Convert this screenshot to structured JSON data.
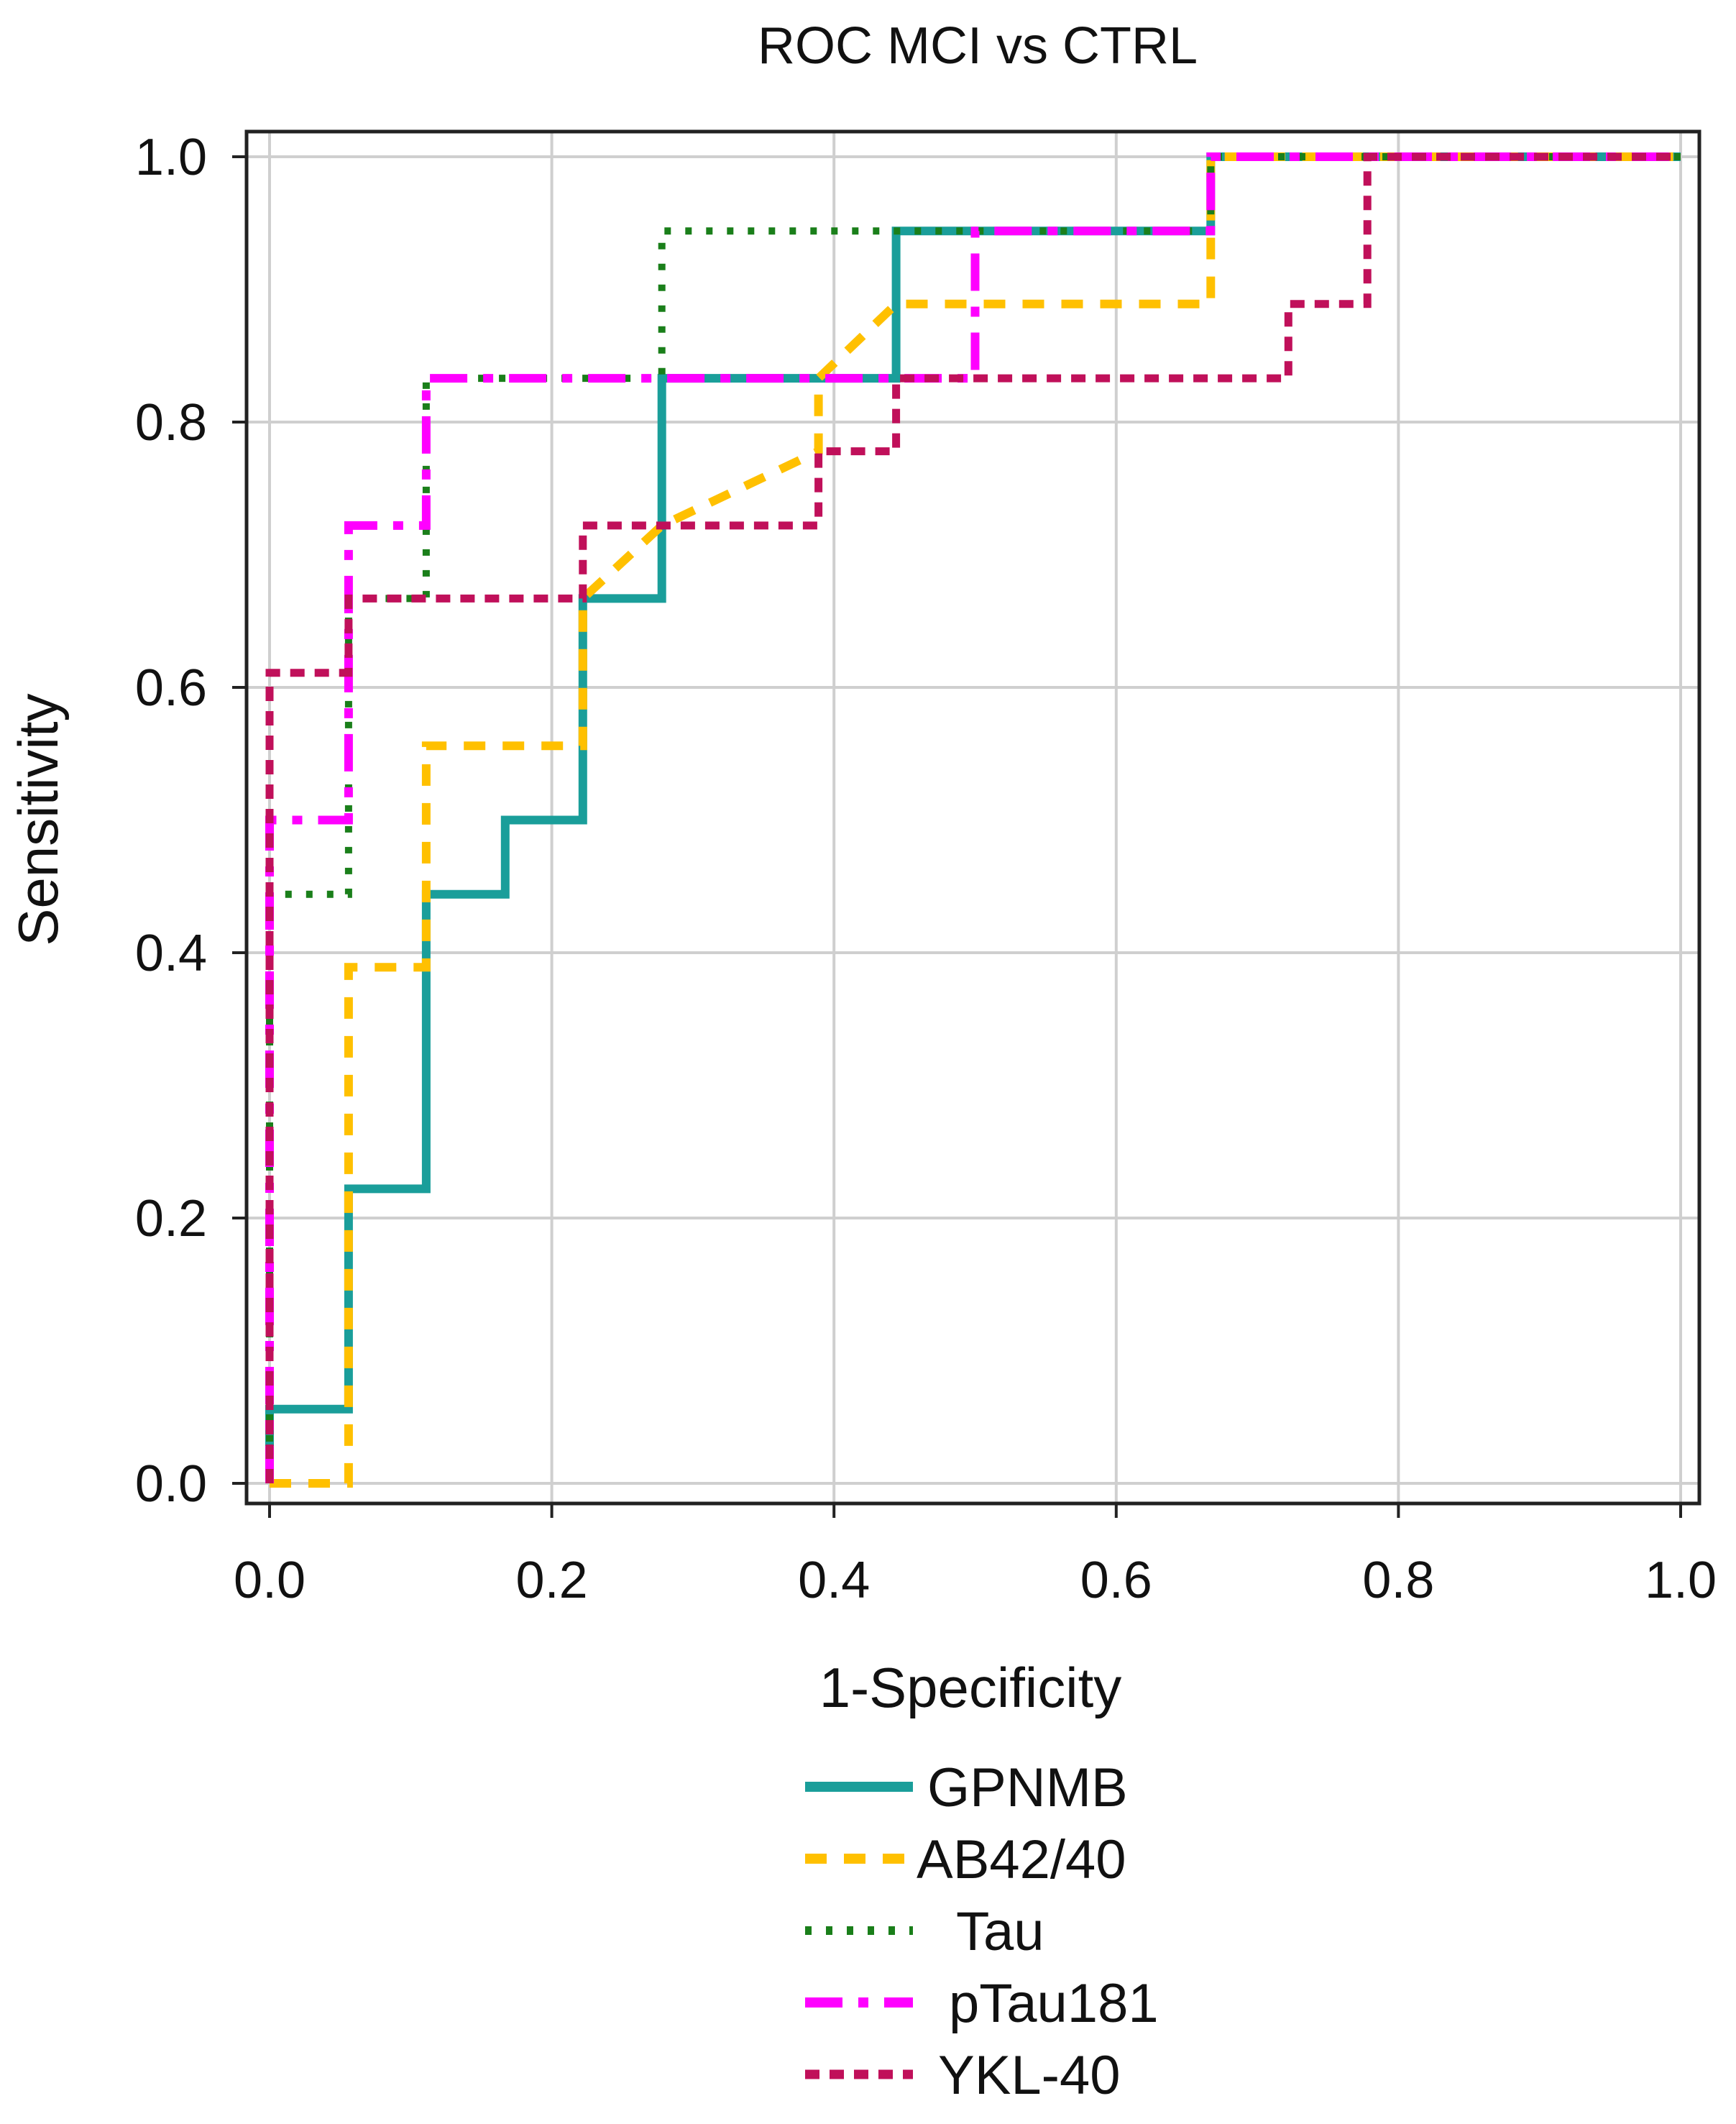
{
  "chart_data": {
    "type": "line",
    "title": "ROC MCI vs CTRL",
    "xlabel": "1-Specificity",
    "ylabel": "Sensitivity",
    "xlim": [
      0,
      1
    ],
    "ylim": [
      0,
      1
    ],
    "xticks": [
      "0.0",
      "0.2",
      "0.4",
      "0.6",
      "0.8",
      "1.0"
    ],
    "yticks": [
      "0.0",
      "0.2",
      "0.4",
      "0.6",
      "0.8",
      "1.0"
    ],
    "grid": true,
    "legend_position": "bottom",
    "series": [
      {
        "name": "GPNMB",
        "color": "#1a9e9a",
        "style": "solid",
        "points": [
          [
            0,
            0
          ],
          [
            0,
            0.056
          ],
          [
            0.056,
            0.056
          ],
          [
            0.056,
            0.222
          ],
          [
            0.111,
            0.222
          ],
          [
            0.111,
            0.444
          ],
          [
            0.167,
            0.444
          ],
          [
            0.167,
            0.5
          ],
          [
            0.222,
            0.5
          ],
          [
            0.222,
            0.667
          ],
          [
            0.278,
            0.667
          ],
          [
            0.278,
            0.833
          ],
          [
            0.444,
            0.833
          ],
          [
            0.444,
            0.944
          ],
          [
            0.667,
            0.944
          ],
          [
            0.667,
            1
          ],
          [
            1,
            1
          ]
        ]
      },
      {
        "name": "AB42/40",
        "color": "#ffc000",
        "style": "dashed",
        "points": [
          [
            0,
            0
          ],
          [
            0.056,
            0
          ],
          [
            0.056,
            0.389
          ],
          [
            0.111,
            0.389
          ],
          [
            0.111,
            0.556
          ],
          [
            0.222,
            0.556
          ],
          [
            0.222,
            0.667
          ],
          [
            0.278,
            0.722
          ],
          [
            0.389,
            0.778
          ],
          [
            0.389,
            0.833
          ],
          [
            0.444,
            0.889
          ],
          [
            0.667,
            0.889
          ],
          [
            0.667,
            1
          ],
          [
            1,
            1
          ]
        ]
      },
      {
        "name": "Tau",
        "color": "#1a7f1a",
        "style": "dotted",
        "points": [
          [
            0,
            0
          ],
          [
            0,
            0.444
          ],
          [
            0.056,
            0.444
          ],
          [
            0.056,
            0.667
          ],
          [
            0.111,
            0.667
          ],
          [
            0.111,
            0.833
          ],
          [
            0.278,
            0.833
          ],
          [
            0.278,
            0.944
          ],
          [
            0.667,
            0.944
          ],
          [
            0.667,
            1
          ],
          [
            1,
            1
          ]
        ]
      },
      {
        "name": "pTau181",
        "color": "#ff00ff",
        "style": "dashdot",
        "points": [
          [
            0,
            0
          ],
          [
            0,
            0.5
          ],
          [
            0.028,
            0.5
          ],
          [
            0.056,
            0.5
          ],
          [
            0.056,
            0.722
          ],
          [
            0.111,
            0.722
          ],
          [
            0.111,
            0.833
          ],
          [
            0.5,
            0.833
          ],
          [
            0.5,
            0.944
          ],
          [
            0.667,
            0.944
          ],
          [
            0.667,
            1
          ],
          [
            1,
            1
          ]
        ]
      },
      {
        "name": "YKL-40",
        "color": "#c0105a",
        "style": "shortdash",
        "points": [
          [
            0,
            0
          ],
          [
            0,
            0.611
          ],
          [
            0.056,
            0.611
          ],
          [
            0.056,
            0.667
          ],
          [
            0.222,
            0.667
          ],
          [
            0.222,
            0.722
          ],
          [
            0.389,
            0.722
          ],
          [
            0.389,
            0.778
          ],
          [
            0.444,
            0.778
          ],
          [
            0.444,
            0.833
          ],
          [
            0.722,
            0.833
          ],
          [
            0.722,
            0.889
          ],
          [
            0.778,
            0.889
          ],
          [
            0.778,
            1
          ],
          [
            1,
            1
          ]
        ]
      }
    ]
  }
}
